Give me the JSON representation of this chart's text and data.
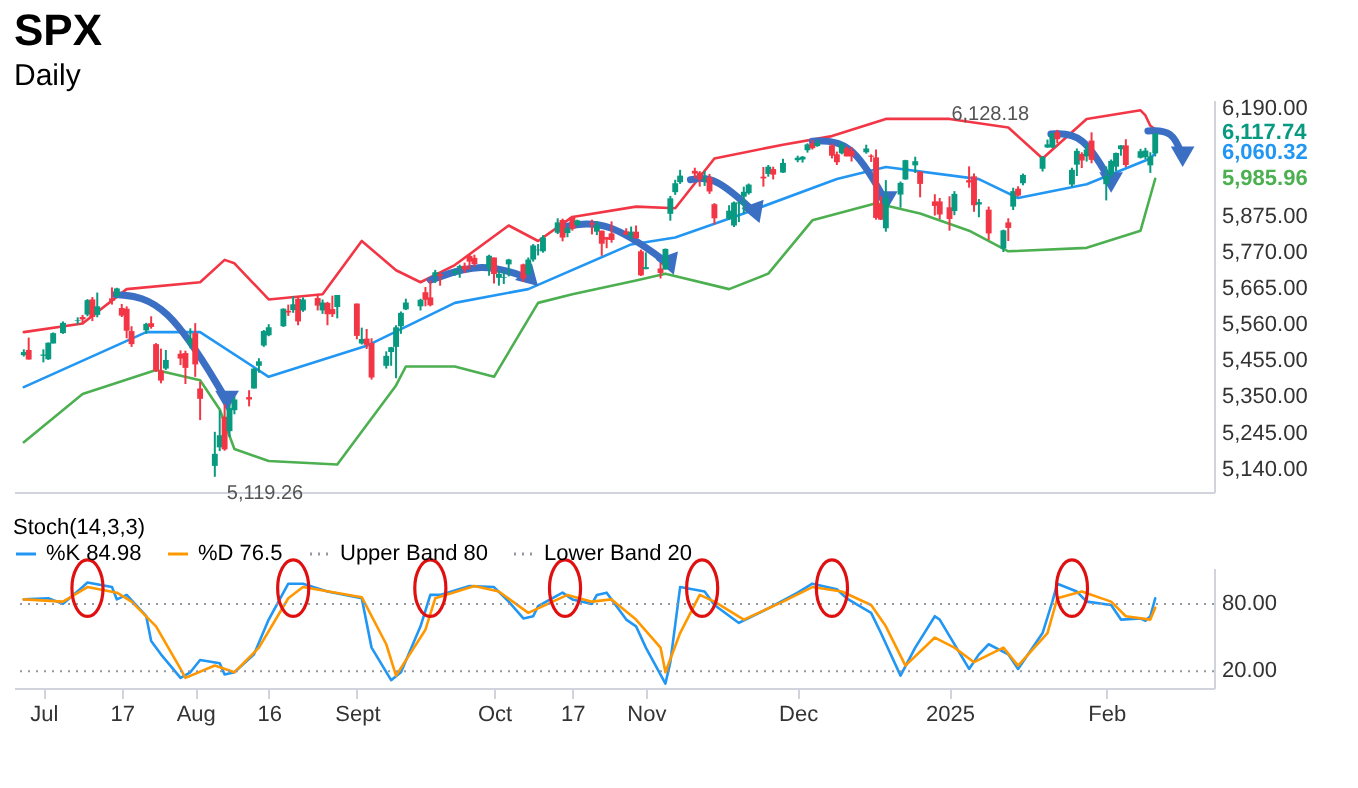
{
  "chart_data": [
    {
      "type": "candlestick",
      "title": "SPX",
      "subtitle": "Daily",
      "tick_labels": "y",
      "grid": false,
      "xlim": [
        "2024-06-25",
        "2025-02-25"
      ],
      "ylim": [
        5075,
        6215
      ],
      "yticks": [
        {
          "value": 5140,
          "label": "5,140.00"
        },
        {
          "value": 5245,
          "label": "5,245.00"
        },
        {
          "value": 5350,
          "label": "5,350.00"
        },
        {
          "value": 5455,
          "label": "5,455.00"
        },
        {
          "value": 5560,
          "label": "5,560.00"
        },
        {
          "value": 5665,
          "label": "5,665.00"
        },
        {
          "value": 5770,
          "label": "5,770.00"
        },
        {
          "value": 5875,
          "label": "5,875.00"
        },
        {
          "value": 6190,
          "label": "6,190.00"
        }
      ],
      "x": [
        "2024-06-27",
        "2024-06-28",
        "2024-07-01",
        "2024-07-02",
        "2024-07-03",
        "2024-07-05",
        "2024-07-08",
        "2024-07-09",
        "2024-07-10",
        "2024-07-11",
        "2024-07-12",
        "2024-07-15",
        "2024-07-16",
        "2024-07-17",
        "2024-07-18",
        "2024-07-19",
        "2024-07-22",
        "2024-07-23",
        "2024-07-24",
        "2024-07-25",
        "2024-07-26",
        "2024-07-29",
        "2024-07-30",
        "2024-07-31",
        "2024-08-01",
        "2024-08-02",
        "2024-08-05",
        "2024-08-06",
        "2024-08-07",
        "2024-08-08",
        "2024-08-09",
        "2024-08-12",
        "2024-08-13",
        "2024-08-14",
        "2024-08-15",
        "2024-08-16",
        "2024-08-19",
        "2024-08-20",
        "2024-08-21",
        "2024-08-22",
        "2024-08-23",
        "2024-08-26",
        "2024-08-27",
        "2024-08-28",
        "2024-08-29",
        "2024-08-30",
        "2024-09-03",
        "2024-09-04",
        "2024-09-05",
        "2024-09-06",
        "2024-09-09",
        "2024-09-10",
        "2024-09-11",
        "2024-09-12",
        "2024-09-13",
        "2024-09-16",
        "2024-09-17",
        "2024-09-18",
        "2024-09-19",
        "2024-09-20",
        "2024-09-23",
        "2024-09-24",
        "2024-09-25",
        "2024-09-26",
        "2024-09-27",
        "2024-09-30",
        "2024-10-01",
        "2024-10-02",
        "2024-10-03",
        "2024-10-04",
        "2024-10-07",
        "2024-10-08",
        "2024-10-09",
        "2024-10-10",
        "2024-10-11",
        "2024-10-14",
        "2024-10-15",
        "2024-10-16",
        "2024-10-17",
        "2024-10-18",
        "2024-10-21",
        "2024-10-22",
        "2024-10-23",
        "2024-10-24",
        "2024-10-25",
        "2024-10-28",
        "2024-10-29",
        "2024-10-30",
        "2024-10-31",
        "2024-11-01",
        "2024-11-04",
        "2024-11-05",
        "2024-11-06",
        "2024-11-07",
        "2024-11-08",
        "2024-11-11",
        "2024-11-12",
        "2024-11-13",
        "2024-11-14",
        "2024-11-15",
        "2024-11-18",
        "2024-11-19",
        "2024-11-20",
        "2024-11-21",
        "2024-11-22",
        "2024-11-25",
        "2024-11-26",
        "2024-11-27",
        "2024-11-29",
        "2024-12-02",
        "2024-12-03",
        "2024-12-04",
        "2024-12-05",
        "2024-12-06",
        "2024-12-09",
        "2024-12-10",
        "2024-12-11",
        "2024-12-12",
        "2024-12-13",
        "2024-12-16",
        "2024-12-17",
        "2024-12-18",
        "2024-12-19",
        "2024-12-20",
        "2024-12-23",
        "2024-12-24",
        "2024-12-26",
        "2024-12-27",
        "2024-12-30",
        "2024-12-31",
        "2025-01-02",
        "2025-01-03",
        "2025-01-06",
        "2025-01-07",
        "2025-01-08",
        "2025-01-10",
        "2025-01-13",
        "2025-01-14",
        "2025-01-15",
        "2025-01-16",
        "2025-01-17",
        "2025-01-21",
        "2025-01-22",
        "2025-01-23",
        "2025-01-24",
        "2025-01-27",
        "2025-01-28",
        "2025-01-29",
        "2025-01-30",
        "2025-01-31",
        "2025-02-03",
        "2025-02-04",
        "2025-02-05",
        "2025-02-06",
        "2025-02-07",
        "2025-02-10",
        "2025-02-11",
        "2025-02-12",
        "2025-02-13"
      ],
      "ohlc": [
        [
          5473,
          5490,
          5469,
          5482
        ],
        [
          5488,
          5524,
          5460,
          5460
        ],
        [
          5471,
          5490,
          5452,
          5475
        ],
        [
          5461,
          5510,
          5459,
          5509
        ],
        [
          5507,
          5539,
          5507,
          5537
        ],
        [
          5537,
          5571,
          5535,
          5567
        ],
        [
          5572,
          5583,
          5562,
          5574
        ],
        [
          5584,
          5590,
          5563,
          5577
        ],
        [
          5591,
          5636,
          5586,
          5633
        ],
        [
          5635,
          5642,
          5572,
          5584
        ],
        [
          5590,
          5655,
          5583,
          5615
        ],
        [
          5638,
          5670,
          5620,
          5631
        ],
        [
          5645,
          5669,
          5639,
          5667
        ],
        [
          5610,
          5622,
          5584,
          5588
        ],
        [
          5608,
          5615,
          5522,
          5544
        ],
        [
          5543,
          5557,
          5497,
          5505
        ],
        [
          5545,
          5567,
          5535,
          5564
        ],
        [
          5566,
          5586,
          5550,
          5555
        ],
        [
          5505,
          5508,
          5424,
          5427
        ],
        [
          5428,
          5492,
          5391,
          5399
        ],
        [
          5434,
          5488,
          5430,
          5459
        ],
        [
          5477,
          5487,
          5444,
          5463
        ],
        [
          5479,
          5486,
          5389,
          5436
        ],
        [
          5505,
          5551,
          5493,
          5522
        ],
        [
          5537,
          5566,
          5410,
          5446
        ],
        [
          5376,
          5396,
          5284,
          5346
        ],
        [
          5151,
          5250,
          5119.26,
          5186
        ],
        [
          5205,
          5312,
          5194,
          5240
        ],
        [
          5294,
          5330,
          5195,
          5199
        ],
        [
          5252,
          5328,
          5235,
          5319
        ],
        [
          5313,
          5351,
          5301,
          5344
        ],
        [
          5351,
          5371,
          5324,
          5344
        ],
        [
          5376,
          5435,
          5376,
          5434
        ],
        [
          5442,
          5464,
          5422,
          5455
        ],
        [
          5501,
          5546,
          5497,
          5543
        ],
        [
          5531,
          5563,
          5528,
          5554
        ],
        [
          5557,
          5609,
          5555,
          5608
        ],
        [
          5602,
          5620,
          5587,
          5597
        ],
        [
          5604,
          5644,
          5596,
          5621
        ],
        [
          5637,
          5643,
          5560,
          5571
        ],
        [
          5603,
          5641,
          5599,
          5635
        ],
        [
          5639,
          5651,
          5603,
          5617
        ],
        [
          5603,
          5635,
          5593,
          5626
        ],
        [
          5625,
          5628,
          5560,
          5592
        ],
        [
          5607,
          5646,
          5584,
          5592
        ],
        [
          5613,
          5648,
          5580,
          5648
        ],
        [
          5623,
          5623,
          5519,
          5529
        ],
        [
          5507,
          5553,
          5504,
          5520
        ],
        [
          5521,
          5549,
          5491,
          5503
        ],
        [
          5508,
          5522,
          5402,
          5408
        ],
        [
          5442,
          5484,
          5434,
          5471
        ],
        [
          5482,
          5497,
          5442,
          5496
        ],
        [
          5497,
          5560,
          5406,
          5554
        ],
        [
          5557,
          5600,
          5535,
          5596
        ],
        [
          5606,
          5637,
          5604,
          5626
        ],
        [
          5615,
          5637,
          5603,
          5634
        ],
        [
          5656,
          5671,
          5615,
          5634
        ],
        [
          5641,
          5690,
          5615,
          5618
        ],
        [
          5703,
          5721,
          5683,
          5714
        ],
        [
          5709,
          5715,
          5675,
          5703
        ],
        [
          5712,
          5725,
          5704,
          5718
        ],
        [
          5727,
          5736,
          5698,
          5732
        ],
        [
          5733,
          5742,
          5712,
          5722
        ],
        [
          5762,
          5767,
          5722,
          5745
        ],
        [
          5756,
          5765,
          5730,
          5738
        ],
        [
          5727,
          5765,
          5704,
          5762
        ],
        [
          5757,
          5757,
          5681,
          5709
        ],
        [
          5698,
          5720,
          5675,
          5709
        ],
        [
          5698,
          5718,
          5680,
          5700
        ],
        [
          5737,
          5753,
          5702,
          5751
        ],
        [
          5737,
          5739,
          5686,
          5696
        ],
        [
          5709,
          5757,
          5705,
          5751
        ],
        [
          5751,
          5796,
          5745,
          5792
        ],
        [
          5778,
          5796,
          5763,
          5780
        ],
        [
          5775,
          5822,
          5771,
          5815
        ],
        [
          5829,
          5871,
          5825,
          5859
        ],
        [
          5866,
          5870,
          5804,
          5815
        ],
        [
          5828,
          5844,
          5816,
          5843
        ],
        [
          5875,
          5878,
          5835,
          5841
        ],
        [
          5852,
          5867,
          5848,
          5865
        ],
        [
          5857,
          5867,
          5824,
          5853
        ],
        [
          5832,
          5863,
          5822,
          5851
        ],
        [
          5835,
          5835,
          5762,
          5797
        ],
        [
          5816,
          5817,
          5784,
          5809
        ],
        [
          5827,
          5862,
          5800,
          5808
        ],
        [
          5833,
          5842,
          5823,
          5823
        ],
        [
          5819,
          5847,
          5810,
          5832
        ],
        [
          5832,
          5850,
          5811,
          5813
        ],
        [
          5775,
          5780,
          5703,
          5705
        ],
        [
          5723,
          5772,
          5723,
          5729
        ],
        [
          5725,
          5741,
          5696,
          5712
        ],
        [
          5722,
          5783,
          5722,
          5782
        ],
        [
          5884,
          5936,
          5864,
          5929
        ],
        [
          5947,
          5983,
          5939,
          5973
        ],
        [
          5976,
          6012,
          5971,
          5995
        ],
        [
          6009,
          6018,
          5987,
          6001
        ],
        [
          6004,
          6008,
          5963,
          5984
        ],
        [
          5983,
          6008,
          5965,
          5985
        ],
        [
          5990,
          6000,
          5942,
          5949
        ],
        [
          5912,
          5915,
          5853,
          5871
        ],
        [
          5870,
          5909,
          5866,
          5893
        ],
        [
          5850,
          5920,
          5846,
          5917
        ],
        [
          5914,
          5920,
          5860,
          5917
        ],
        [
          5934,
          5963,
          5885,
          5948
        ],
        [
          5944,
          5972,
          5940,
          5969
        ],
        [
          5992,
          6020,
          5963,
          5987
        ],
        [
          6000,
          6026,
          5992,
          6021
        ],
        [
          6014,
          6021,
          5984,
          5998
        ],
        [
          6004,
          6044,
          6003,
          6032
        ],
        [
          6040,
          6053,
          6034,
          6047
        ],
        [
          6042,
          6052,
          6033,
          6050
        ],
        [
          6069,
          6089,
          6062,
          6086
        ],
        [
          6089,
          6099,
          6071,
          6075
        ],
        [
          6081,
          6099,
          6079,
          6090
        ],
        [
          6083,
          6088,
          6045,
          6053
        ],
        [
          6057,
          6065,
          6026,
          6034
        ],
        [
          6060,
          6093,
          6057,
          6085
        ],
        [
          6075,
          6080,
          6051,
          6051
        ],
        [
          6068,
          6078,
          6036,
          6051
        ],
        [
          6063,
          6085,
          6059,
          6074
        ],
        [
          6053,
          6057,
          6035,
          6050
        ],
        [
          6048,
          6071,
          5867,
          5872
        ],
        [
          5913,
          5935,
          5866,
          5867
        ],
        [
          5842,
          5982,
          5832,
          5931
        ],
        [
          5940,
          5978,
          5902,
          5974
        ],
        [
          5984,
          6041,
          5983,
          6040
        ],
        [
          6025,
          6050,
          6003,
          6037
        ],
        [
          6007,
          6007,
          5932,
          5971
        ],
        [
          5920,
          5941,
          5879,
          5907
        ],
        [
          5920,
          5930,
          5869,
          5882
        ],
        [
          5903,
          5935,
          5835,
          5869
        ],
        [
          5892,
          5950,
          5880,
          5942
        ],
        [
          5982,
          6022,
          5960,
          5975
        ],
        [
          5993,
          6001,
          5890,
          5909
        ],
        [
          5911,
          5927,
          5874,
          5918
        ],
        [
          5896,
          5905,
          5808,
          5827
        ],
        [
          5783,
          5838,
          5773,
          5836
        ],
        [
          5859,
          5871,
          5805,
          5843
        ],
        [
          5905,
          5960,
          5895,
          5950
        ],
        [
          5957,
          5964,
          5934,
          5937
        ],
        [
          5973,
          6001,
          5967,
          5997
        ],
        [
          6015,
          6052,
          6007,
          6049
        ],
        [
          6077,
          6100,
          6076,
          6086
        ],
        [
          6077,
          6119,
          6075,
          6119
        ],
        [
          6121,
          6128.18,
          6089,
          6101
        ],
        [
          5969,
          6018,
          5962,
          6012
        ],
        [
          6027,
          6074,
          5994,
          6067
        ],
        [
          6058,
          6063,
          6017,
          6039
        ],
        [
          6051,
          6087,
          6036,
          6071
        ],
        [
          6097,
          6121,
          6031,
          6041
        ],
        [
          5970,
          6022,
          5923,
          5994
        ],
        [
          5998,
          6042,
          5990,
          6038
        ],
        [
          6021,
          6062,
          6008,
          6061
        ],
        [
          6072,
          6084,
          6053,
          6083
        ],
        [
          6083,
          6101,
          6020,
          6026
        ],
        [
          6047,
          6073,
          6045,
          6066
        ],
        [
          6049,
          6076,
          6043,
          6068
        ],
        [
          6025,
          6063,
          6003,
          6051
        ],
        [
          6060,
          6117.74,
          6051,
          6117.74
        ]
      ],
      "series": [
        {
          "type": "line",
          "color": "#f23645",
          "x": [
            "2024-06-27",
            "2024-07-09",
            "2024-07-18",
            "2024-08-02",
            "2024-08-07",
            "2024-08-09",
            "2024-08-16",
            "2024-08-27",
            "2024-09-04",
            "2024-09-11",
            "2024-09-16",
            "2024-09-23",
            "2024-10-04",
            "2024-10-10",
            "2024-10-17",
            "2024-10-30",
            "2024-11-07",
            "2024-11-15",
            "2024-11-29",
            "2024-12-09",
            "2024-12-20",
            "2025-01-02",
            "2025-01-14",
            "2025-01-21",
            "2025-01-30",
            "2025-02-10",
            "2025-02-11",
            "2025-02-12",
            "2025-02-13"
          ],
          "values": [
            5540,
            5565,
            5665,
            5685,
            5750,
            5740,
            5635,
            5650,
            5805,
            5720,
            5685,
            5735,
            5850,
            5805,
            5875,
            5905,
            5900,
            6045,
            6085,
            6110,
            6160,
            6160,
            6135,
            6045,
            6160,
            6185,
            6170,
            6140,
            6130
          ]
        },
        {
          "type": "line",
          "color": "#2196f3",
          "x": [
            "2024-06-27",
            "2024-07-22",
            "2024-08-02",
            "2024-08-16",
            "2024-09-05",
            "2024-09-23",
            "2024-10-08",
            "2024-10-29",
            "2024-11-07",
            "2024-11-21",
            "2024-12-10",
            "2024-12-20",
            "2025-01-08",
            "2025-01-16",
            "2025-01-30",
            "2025-02-12",
            "2025-02-13"
          ],
          "values": [
            5380,
            5540,
            5540,
            5410,
            5500,
            5625,
            5665,
            5795,
            5815,
            5885,
            5985,
            6020,
            5985,
            5930,
            5970,
            6045,
            6060.32
          ]
        },
        {
          "type": "line",
          "color": "#4caf50",
          "x": [
            "2024-06-27",
            "2024-07-09",
            "2024-07-24",
            "2024-08-02",
            "2024-08-06",
            "2024-08-09",
            "2024-08-16",
            "2024-08-30",
            "2024-09-11",
            "2024-09-13",
            "2024-09-23",
            "2024-10-01",
            "2024-10-10",
            "2024-10-17",
            "2024-10-30",
            "2024-11-05",
            "2024-11-18",
            "2024-11-26",
            "2024-12-05",
            "2024-12-18",
            "2024-12-27",
            "2025-01-06",
            "2025-01-14",
            "2025-01-30",
            "2025-02-10",
            "2025-02-13"
          ],
          "values": [
            5220,
            5360,
            5430,
            5400,
            5315,
            5200,
            5165,
            5155,
            5385,
            5440,
            5440,
            5410,
            5625,
            5650,
            5690,
            5710,
            5665,
            5710,
            5865,
            5915,
            5885,
            5835,
            5775,
            5785,
            5835,
            5985.96
          ]
        }
      ],
      "annotations": [
        {
          "text": "5,119.26",
          "x": "2024-08-05",
          "y": 5119.26
        },
        {
          "text": "6,128.18",
          "x": "2025-01-24",
          "y": 6128.18
        },
        {
          "text": "6,117.74",
          "x": "2025-02-13",
          "y": 6117.74
        },
        {
          "text": "6,060.32",
          "x": "2025-02-13",
          "y": 6060.32
        },
        {
          "text": "5,985.96",
          "x": "2025-02-13",
          "y": 5985.96
        }
      ]
    },
    {
      "type": "line",
      "title": "Stoch(14,3,3)",
      "legend": "top left",
      "grid": false,
      "line_style": "solid",
      "xlim": [
        "2024-06-25",
        "2025-02-25"
      ],
      "xticks": [
        {
          "value": "2024-07-01",
          "label": "Jul"
        },
        {
          "value": "2024-07-17",
          "label": "17"
        },
        {
          "value": "2024-08-01",
          "label": "Aug"
        },
        {
          "value": "2024-08-16",
          "label": "16"
        },
        {
          "value": "2024-09-03",
          "label": "Sept"
        },
        {
          "value": "2024-10-01",
          "label": "Oct"
        },
        {
          "value": "2024-10-17",
          "label": "17"
        },
        {
          "value": "2024-11-01",
          "label": "Nov"
        },
        {
          "value": "2024-12-02",
          "label": "Dec"
        },
        {
          "value": "2025-01-02",
          "label": "2025"
        },
        {
          "value": "2025-02-03",
          "label": "Feb"
        }
      ],
      "ylim": [
        5,
        112
      ],
      "yticks": [
        {
          "value": 20,
          "label": "20.00"
        },
        {
          "value": 80,
          "label": "80.00"
        }
      ],
      "series": [
        {
          "name": "%K 84.98",
          "color": "#2196f3",
          "x": [
            "2024-06-27",
            "2024-07-02",
            "2024-07-05",
            "2024-07-09",
            "2024-07-10",
            "2024-07-15",
            "2024-07-16",
            "2024-07-18",
            "2024-07-22",
            "2024-07-23",
            "2024-07-25",
            "2024-07-29",
            "2024-07-31",
            "2024-08-02",
            "2024-08-06",
            "2024-08-07",
            "2024-08-09",
            "2024-08-13",
            "2024-08-16",
            "2024-08-20",
            "2024-08-23",
            "2024-08-28",
            "2024-09-04",
            "2024-09-06",
            "2024-09-10",
            "2024-09-12",
            "2024-09-16",
            "2024-09-18",
            "2024-09-20",
            "2024-09-26",
            "2024-10-01",
            "2024-10-04",
            "2024-10-07",
            "2024-10-09",
            "2024-10-10",
            "2024-10-15",
            "2024-10-17",
            "2024-10-21",
            "2024-10-22",
            "2024-10-24",
            "2024-10-28",
            "2024-10-30",
            "2024-11-01",
            "2024-11-05",
            "2024-11-06",
            "2024-11-08",
            "2024-11-13",
            "2024-11-15",
            "2024-11-20",
            "2024-11-26",
            "2024-12-02",
            "2024-12-05",
            "2024-12-10",
            "2024-12-12",
            "2024-12-17",
            "2024-12-19",
            "2024-12-23",
            "2024-12-26",
            "2024-12-30",
            "2024-12-31",
            "2025-01-06",
            "2025-01-08",
            "2025-01-10",
            "2025-01-14",
            "2025-01-16",
            "2025-01-21",
            "2025-01-23",
            "2025-01-24",
            "2025-01-28",
            "2025-01-30",
            "2025-02-04",
            "2025-02-06",
            "2025-02-10",
            "2025-02-11",
            "2025-02-12",
            "2025-02-13"
          ],
          "values": [
            84,
            85,
            80,
            95,
            99,
            95,
            84,
            88,
            69,
            47,
            35,
            14,
            19,
            30,
            27,
            17,
            19,
            35,
            66,
            98,
            98,
            91,
            85,
            41,
            12,
            19,
            60,
            88,
            88,
            96,
            95,
            82,
            67,
            69,
            78,
            90,
            84,
            80,
            88,
            90,
            66,
            60,
            41,
            9,
            28,
            95,
            91,
            79,
            63,
            76,
            90,
            98,
            93,
            85,
            72,
            54,
            16,
            41,
            69,
            66,
            22,
            35,
            44,
            35,
            22,
            54,
            82,
            98,
            91,
            82,
            79,
            66,
            67,
            65,
            69,
            84.98
          ]
        },
        {
          "name": "%D 76.5",
          "color": "#ff9800",
          "x": [
            "2024-06-27",
            "2024-07-05",
            "2024-07-10",
            "2024-07-16",
            "2024-07-19",
            "2024-07-24",
            "2024-07-29",
            "2024-07-30",
            "2024-08-05",
            "2024-08-09",
            "2024-08-14",
            "2024-08-20",
            "2024-08-23",
            "2024-09-04",
            "2024-09-09",
            "2024-09-11",
            "2024-09-17",
            "2024-09-19",
            "2024-09-27",
            "2024-10-02",
            "2024-10-08",
            "2024-10-10",
            "2024-10-16",
            "2024-10-21",
            "2024-10-25",
            "2024-10-30",
            "2024-11-04",
            "2024-11-05",
            "2024-11-08",
            "2024-11-12",
            "2024-11-15",
            "2024-11-21",
            "2024-11-29",
            "2024-12-05",
            "2024-12-11",
            "2024-12-17",
            "2024-12-20",
            "2024-12-24",
            "2024-12-30",
            "2025-01-03",
            "2025-01-07",
            "2025-01-13",
            "2025-01-16",
            "2025-01-22",
            "2025-01-24",
            "2025-01-29",
            "2025-02-04",
            "2025-02-07",
            "2025-02-12",
            "2025-02-13"
          ],
          "values": [
            84,
            82,
            95,
            90,
            82,
            60,
            22,
            14,
            25,
            19,
            41,
            85,
            95,
            86,
            44,
            16,
            57,
            85,
            96,
            91,
            72,
            76,
            88,
            82,
            84,
            66,
            41,
            19,
            54,
            88,
            82,
            66,
            82,
            95,
            91,
            79,
            60,
            25,
            50,
            41,
            28,
            41,
            25,
            54,
            85,
            91,
            82,
            69,
            66,
            76.5
          ]
        }
      ],
      "ref_lines": [
        {
          "axis": "y",
          "value": 80,
          "label": "Upper Band 80",
          "color": "#9598a1",
          "line_style": "dotted"
        },
        {
          "axis": "y",
          "value": 20,
          "label": "Lower Band 20",
          "color": "#9598a1",
          "line_style": "dotted"
        }
      ]
    }
  ]
}
